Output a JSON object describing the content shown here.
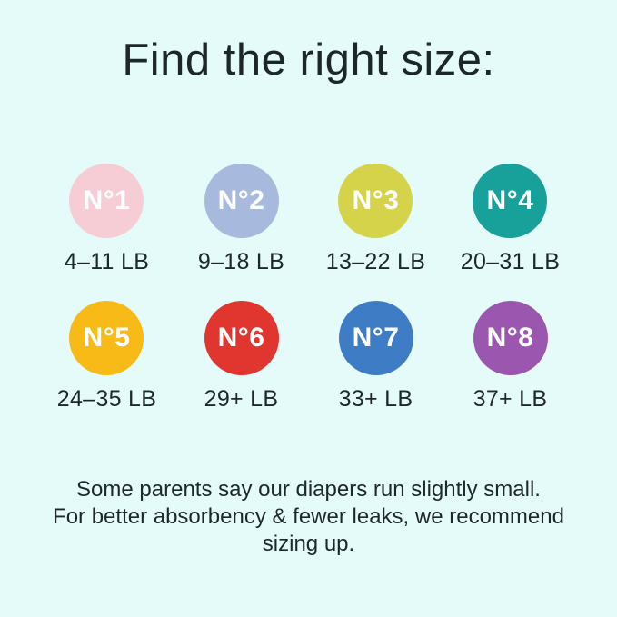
{
  "background_color": "#E4FBF9",
  "title": "Find the right size:",
  "circle_text_color": "#FFFFFF",
  "sizes": [
    {
      "label": "N°1",
      "weight": "4–11 LB",
      "color": "#F7CDD5"
    },
    {
      "label": "N°2",
      "weight": "9–18 LB",
      "color": "#A7B9DC"
    },
    {
      "label": "N°3",
      "weight": "13–22 LB",
      "color": "#D5D349"
    },
    {
      "label": "N°4",
      "weight": "20–31 LB",
      "color": "#18A09B"
    },
    {
      "label": "N°5",
      "weight": "24–35 LB",
      "color": "#F7BA16"
    },
    {
      "label": "N°6",
      "weight": "29+ LB",
      "color": "#E13530"
    },
    {
      "label": "N°7",
      "weight": "33+ LB",
      "color": "#3E7CC6"
    },
    {
      "label": "N°8",
      "weight": "37+ LB",
      "color": "#9B57B0"
    }
  ],
  "footer": {
    "lines": [
      "Some parents say our diapers run slightly small.",
      "For better absorbency & fewer leaks, we recommend",
      "sizing up."
    ]
  }
}
